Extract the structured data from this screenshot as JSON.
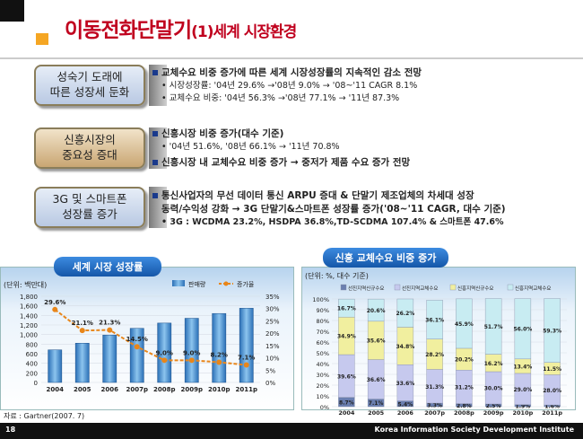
{
  "title": {
    "main": "이동전화단말기",
    "sub": "(1)세계 시장환경"
  },
  "rows": [
    {
      "label": "성숙기 도래에\n따른 성장세 둔화",
      "lines": [
        "교체수요 비중 증가에 따른 세계 시장성장률의 지속적인 감소 전망",
        "시장성장률: '04년 29.6% →'08년 9.0% → '08~'11 CAGR 8.1%",
        "교체수요 비중: '04년 56.3% →'08년 77.1% → '11년 87.3%"
      ]
    },
    {
      "label": "신흥시장의\n중요성 증대",
      "lines": [
        "신흥시장 비중 증가(대수 기준)",
        "'04년 51.6%, '08년 66.1% → '11년 70.8%",
        "신흥시장 내 교체수요 비중 증가 → 중저가  제품 수요 증가 전망"
      ]
    },
    {
      "label": "3G 및 스마트폰\n성장률 증가",
      "lines": [
        "통신사업자의 무선 데이터 통신 ARPU 증대 & 단말기 제조업체의 차세대 성장",
        "동력/수익성 강화 → 3G 단말기&스마트폰 성장률 증가('08~'11 CAGR, 대수 기준)",
        "3G : WCDMA 23.2%, HSDPA 36.8%,TD-SCDMA 107.4% & 스마트폰 47.6%"
      ]
    }
  ],
  "left_chart": {
    "tab": "세계 시장 성장률",
    "unit": "(단위: 백만대)",
    "legend": [
      "판매량",
      "증가율"
    ]
  },
  "right_chart": {
    "tab": "신흥 교체수요 비중 증가",
    "unit": "(단위: %, 대수 기준)",
    "legend": [
      "선진지역신규수요",
      "선진지역교체수요",
      "신흥지역신규수요",
      "신흥지역교체수요"
    ]
  },
  "chart_data": [
    {
      "type": "bar",
      "categories": [
        "2004",
        "2005",
        "2006",
        "2007p",
        "2008p",
        "2009p",
        "2010p",
        "2011p"
      ],
      "series": [
        {
          "name": "판매량",
          "type": "bar",
          "values": [
            680,
            820,
            990,
            1130,
            1240,
            1340,
            1440,
            1550
          ]
        },
        {
          "name": "증가율",
          "type": "line",
          "values": [
            29.6,
            21.1,
            21.3,
            14.5,
            9.0,
            9.0,
            8.2,
            7.1
          ]
        }
      ],
      "ylim": [
        0,
        1800
      ],
      "y2lim": [
        0,
        35
      ],
      "yticks": [
        "0",
        "200",
        "400",
        "600",
        "800",
        "1,000",
        "1,200",
        "1,400",
        "1,600",
        "1,800"
      ],
      "y2ticks": [
        "0%",
        "5%",
        "10%",
        "15%",
        "20%",
        "25%",
        "30%",
        "35%"
      ]
    },
    {
      "type": "bar",
      "stacked": true,
      "categories": [
        "2004",
        "2005",
        "2006",
        "2007p",
        "2008p",
        "2009p",
        "2010p",
        "2011p"
      ],
      "series": [
        {
          "name": "선진지역신규수요",
          "values": [
            8.7,
            7.1,
            5.4,
            3.3,
            2.8,
            2.5,
            1.9,
            1.6
          ]
        },
        {
          "name": "선진지역교체수요",
          "values": [
            39.6,
            36.6,
            33.6,
            31.3,
            31.2,
            30.0,
            29.0,
            28.0
          ]
        },
        {
          "name": "신흥지역신규수요",
          "values": [
            34.9,
            35.6,
            34.8,
            28.2,
            20.2,
            16.2,
            13.4,
            11.5
          ]
        },
        {
          "name": "신흥지역교체수요",
          "values": [
            16.7,
            20.6,
            26.2,
            36.1,
            45.9,
            51.7,
            56.0,
            59.3
          ]
        }
      ],
      "ylim": [
        0,
        100
      ],
      "yticks": [
        "0%",
        "10%",
        "20%",
        "30%",
        "40%",
        "50%",
        "60%",
        "70%",
        "80%",
        "90%",
        "100%"
      ]
    }
  ],
  "source": "자료 : Gartner(2007. 7)",
  "footer": {
    "page": "18",
    "org": "Korea Information Society Development Institute"
  }
}
